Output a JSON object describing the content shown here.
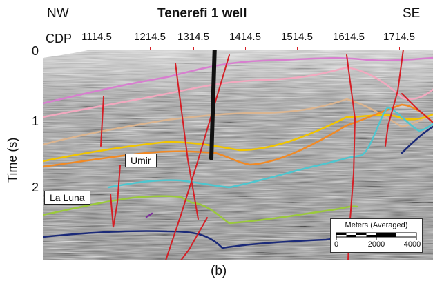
{
  "header": {
    "left_direction": "NW",
    "well_name": "Tenerefi 1 well",
    "right_direction": "SE"
  },
  "cdp": {
    "label": "CDP",
    "values": [
      "1114.5",
      "1214.5",
      "1314.5",
      "1414.5",
      "1514.5",
      "1614.5",
      "1714.5"
    ]
  },
  "y_axis": {
    "label": "Time (s)",
    "ticks": [
      "0",
      "1",
      "2"
    ]
  },
  "formations": {
    "umir": "Umir",
    "la_luna": "La Luna"
  },
  "scale_bar": {
    "title": "Meters (Averaged)",
    "labels": [
      "0",
      "2000",
      "4000"
    ]
  },
  "caption": "(b)",
  "colors": {
    "fault": "#d41f26",
    "well": "#111111",
    "horizons": [
      "#d77fcf",
      "#f2a9bf",
      "#dcb58f",
      "#f1c500",
      "#f18a25",
      "#4ec6cf",
      "#9bc93c",
      "#7c2f9c",
      "#1b2a78"
    ]
  }
}
